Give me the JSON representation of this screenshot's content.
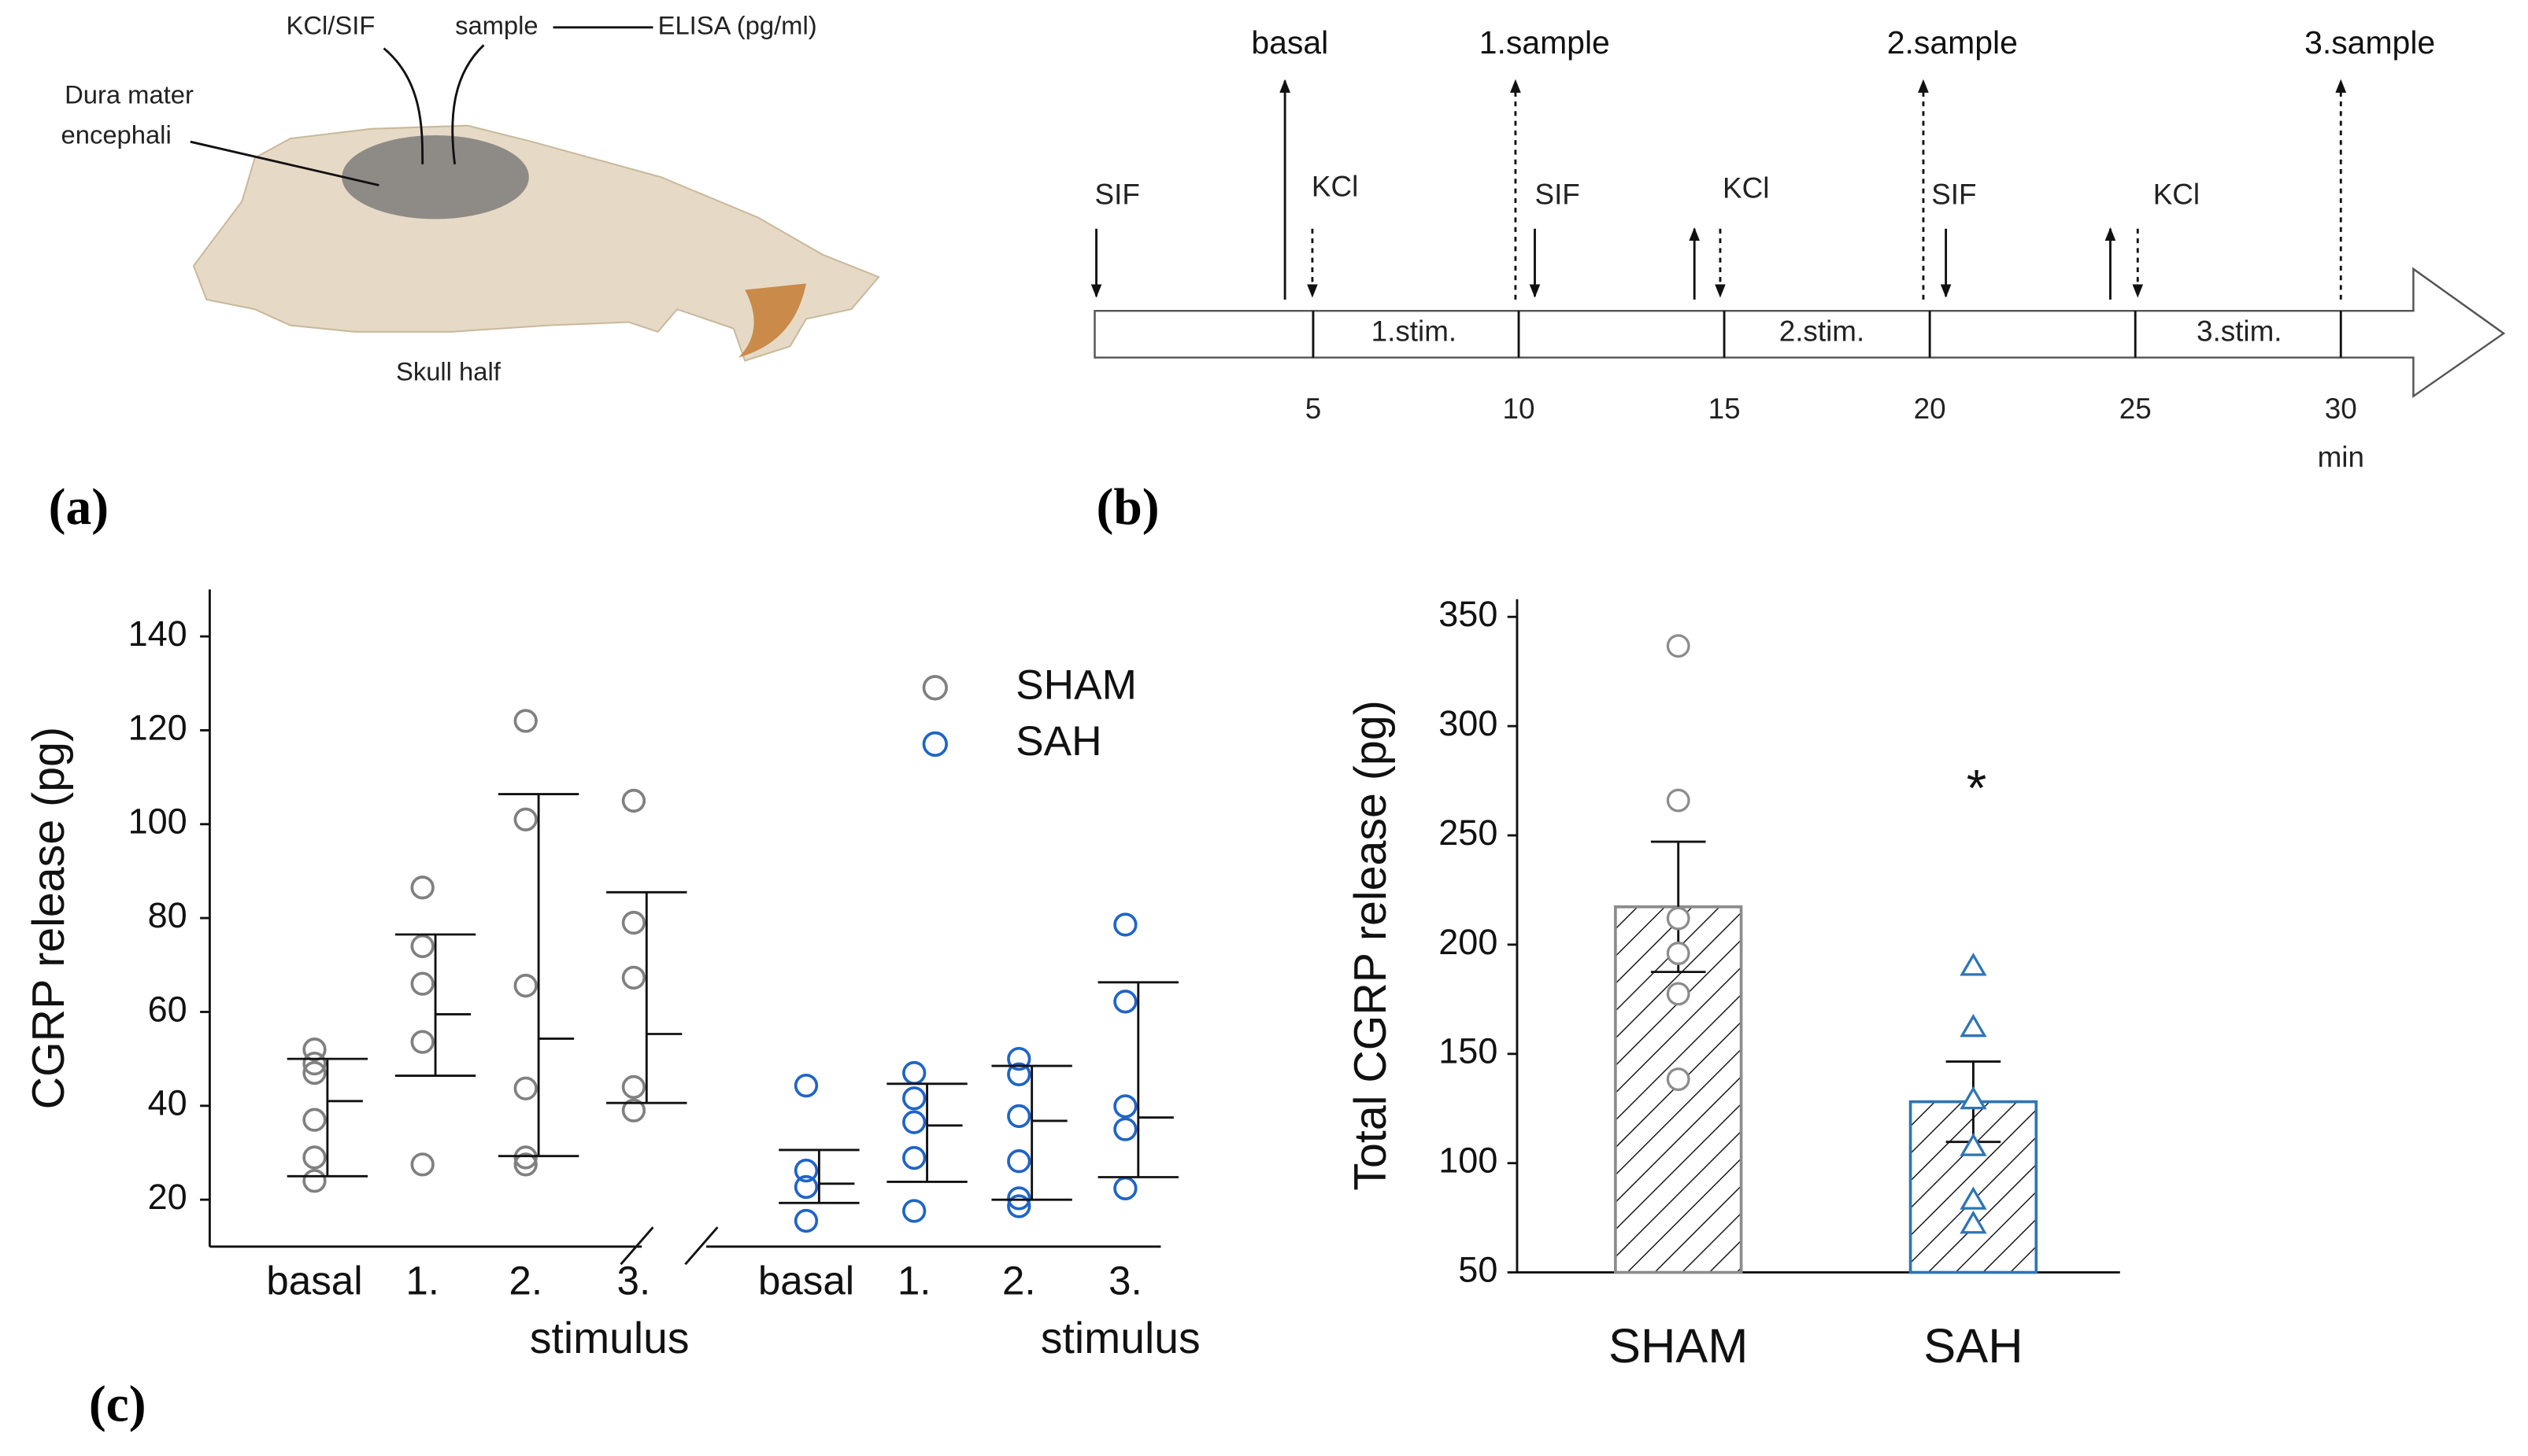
{
  "panel_a": {
    "letter": "(a)",
    "kcl_sif": "KCl/SIF",
    "sample": "sample",
    "elisa": "ELISA (pg/ml)",
    "dura": [
      "Dura mater",
      "encephali"
    ],
    "caption": "Skull half"
  },
  "panel_b": {
    "letter": "(b)",
    "samples": [
      "basal",
      "1.sample",
      "2.sample",
      "3.sample"
    ],
    "stimuli": [
      "SIF",
      "KCl",
      "SIF",
      "KCl",
      "SIF",
      "KCl"
    ],
    "phases": [
      "1.stim.",
      "2.stim.",
      "3.stim."
    ],
    "ticks": [
      5,
      10,
      15,
      20,
      25,
      30
    ],
    "unit": "min"
  },
  "panel_c": {
    "letter": "(c)"
  },
  "chart_data": [
    {
      "type": "scatter",
      "y_label": "CGRP release (pg)",
      "x_label": "stimulus",
      "categories": [
        "basal",
        "1.",
        "2.",
        "3.",
        "basal",
        "1.",
        "2.",
        "3."
      ],
      "ylim": [
        10,
        150
      ],
      "yticks": [
        20,
        40,
        60,
        80,
        100,
        120,
        140
      ],
      "legend": "upper right",
      "series": [
        {
          "name": "SHAM",
          "color": "#808080",
          "values": [
            [
              52,
              49,
              47,
              37,
              29,
              24
            ],
            [
              86.5,
              74,
              66,
              53.6,
              27.5
            ],
            [
              122,
              101,
              65.6,
              43.7,
              29,
              27.5
            ],
            [
              105,
              79,
              67.3,
              44,
              39
            ],
            null,
            null,
            null,
            null
          ],
          "median": [
            41,
            59.5,
            54.3,
            55.3,
            null,
            null,
            null,
            null
          ],
          "upper": [
            50,
            76.5,
            106.4,
            85.5,
            null,
            null,
            null,
            null
          ],
          "lower": [
            25,
            46.4,
            29.3,
            40.6,
            null,
            null,
            null,
            null
          ]
        },
        {
          "name": "SAH",
          "color": "#1f64c8",
          "values": [
            null,
            null,
            null,
            null,
            [
              44.3,
              26.2,
              22.7,
              15.5
            ],
            [
              47,
              41.6,
              36.5,
              28.9,
              17.6
            ],
            [
              50,
              46.7,
              37.8,
              28.2,
              20.3,
              18.6
            ],
            [
              78.6,
              62.2,
              39.9,
              35,
              22.4
            ]
          ],
          "median": [
            null,
            null,
            null,
            null,
            23.4,
            35.8,
            36.8,
            37.5
          ],
          "upper": [
            null,
            null,
            null,
            null,
            30.6,
            44.7,
            48.5,
            66.3
          ],
          "lower": [
            null,
            null,
            null,
            null,
            19.3,
            23.8,
            20,
            24.8
          ]
        }
      ]
    },
    {
      "type": "bar",
      "y_label": "Total CGRP release (pg)",
      "categories": [
        "SHAM",
        "SAH"
      ],
      "ylim": [
        50,
        350
      ],
      "yticks": [
        50,
        100,
        150,
        200,
        250,
        300,
        350
      ],
      "values": [
        217.3,
        128.1
      ],
      "errors": [
        29.8,
        18.4
      ],
      "colors": [
        "#8c8c8c",
        "#2e75b6"
      ],
      "markers": [
        "circle",
        "triangle"
      ],
      "points": [
        [
          336.7,
          266,
          212,
          196,
          177.5,
          138.4
        ],
        [
          190,
          162,
          128.9,
          107.5,
          83,
          72
        ]
      ],
      "annotation": "*"
    }
  ]
}
